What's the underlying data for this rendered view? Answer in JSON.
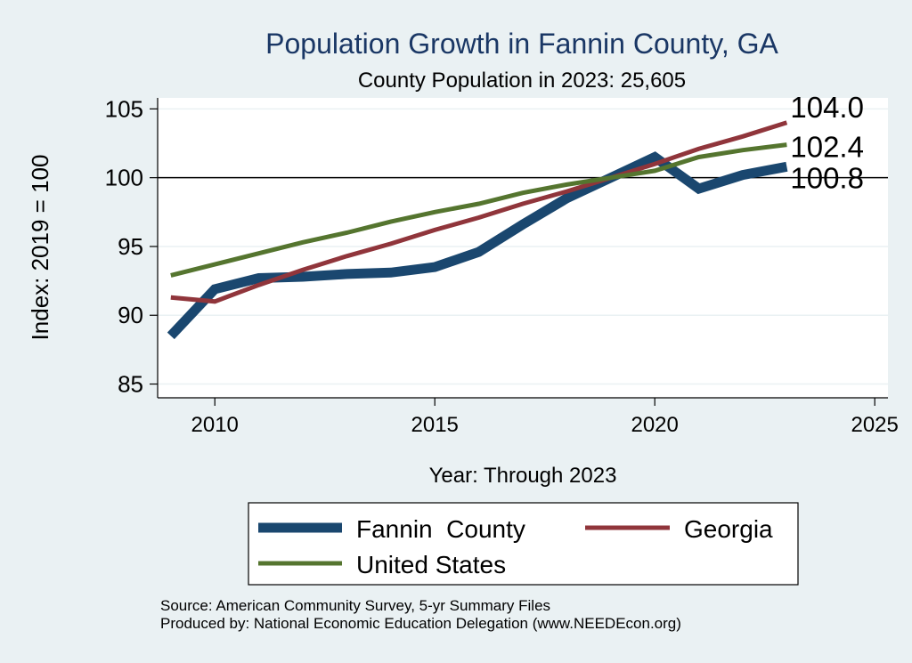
{
  "chart_data": {
    "type": "line",
    "title": "Population Growth in Fannin County, GA",
    "subtitle": "County Population in 2023: 25,605",
    "xlabel": "Year: Through 2023",
    "ylabel": "Index: 2019 = 100",
    "xlim": [
      2008.7,
      2025.3
    ],
    "ylim": [
      84,
      105.8
    ],
    "xticks": [
      2010,
      2015,
      2020,
      2025
    ],
    "yticks": [
      85,
      90,
      95,
      100,
      105
    ],
    "reference_line": 100,
    "x": [
      2009,
      2010,
      2011,
      2012,
      2013,
      2014,
      2015,
      2016,
      2017,
      2018,
      2019,
      2020,
      2021,
      2022,
      2023
    ],
    "series": [
      {
        "name": "Fannin  County",
        "color": "#1a476f",
        "values": [
          88.5,
          91.9,
          92.7,
          92.8,
          93.0,
          93.1,
          93.5,
          94.6,
          96.6,
          98.5,
          100.0,
          101.5,
          99.2,
          100.2,
          100.8
        ],
        "end_label": "100.8"
      },
      {
        "name": "Georgia",
        "color": "#90353b",
        "values": [
          91.3,
          91.0,
          92.2,
          93.3,
          94.3,
          95.2,
          96.2,
          97.1,
          98.1,
          99.0,
          100.0,
          101.0,
          102.1,
          103.0,
          104.0
        ],
        "end_label": "104.0"
      },
      {
        "name": "United States",
        "color": "#55752f",
        "values": [
          92.9,
          93.7,
          94.5,
          95.3,
          96.0,
          96.8,
          97.5,
          98.1,
          98.9,
          99.5,
          100.0,
          100.5,
          101.5,
          102.0,
          102.4
        ],
        "end_label": "102.4"
      }
    ],
    "legend": {
      "position": "bottom",
      "entries": [
        "Fannin  County",
        "Georgia",
        "United States"
      ]
    }
  },
  "footer": {
    "source": "Source: American Community Survey, 5-yr Summary Files",
    "produced_by": "Produced by: National Economic Education Delegation (www.NEEDEcon.org)"
  }
}
